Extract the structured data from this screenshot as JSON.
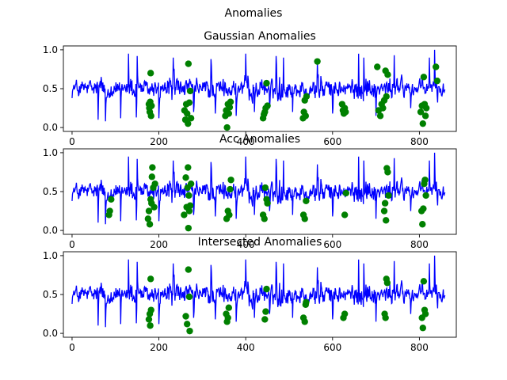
{
  "figure": {
    "suptitle": "Anomalies"
  },
  "chart_data": [
    {
      "type": "line",
      "title": "Gaussian Anomalies",
      "xlabel": "",
      "ylabel": "",
      "xlim": [
        -20,
        885
      ],
      "ylim": [
        -0.05,
        1.05
      ],
      "xticks": [
        0,
        200,
        400,
        600,
        800
      ],
      "xtick_labels": [
        "0",
        "200",
        "400",
        "600",
        "800"
      ],
      "yticks": [
        0.0,
        0.5,
        1.0
      ],
      "ytick_labels": [
        "0.0",
        "0.5",
        "1.0"
      ],
      "grid": false,
      "line_color": "#0000ff",
      "marker_color": "#008000",
      "anomaly_points": [
        [
          177,
          0.3
        ],
        [
          178,
          0.25
        ],
        [
          179,
          0.2
        ],
        [
          180,
          0.33
        ],
        [
          181,
          0.7
        ],
        [
          182,
          0.15
        ],
        [
          183,
          0.28
        ],
        [
          259,
          0.22
        ],
        [
          261,
          0.1
        ],
        [
          263,
          0.3
        ],
        [
          265,
          0.18
        ],
        [
          267,
          0.05
        ],
        [
          268,
          0.82
        ],
        [
          270,
          0.32
        ],
        [
          272,
          0.47
        ],
        [
          274,
          0.12
        ],
        [
          353,
          0.15
        ],
        [
          355,
          0.22
        ],
        [
          357,
          0.0
        ],
        [
          359,
          0.3
        ],
        [
          361,
          0.18
        ],
        [
          363,
          0.26
        ],
        [
          365,
          0.33
        ],
        [
          440,
          0.12
        ],
        [
          442,
          0.17
        ],
        [
          444,
          0.2
        ],
        [
          446,
          0.25
        ],
        [
          448,
          0.57
        ],
        [
          450,
          0.28
        ],
        [
          532,
          0.12
        ],
        [
          534,
          0.2
        ],
        [
          536,
          0.35
        ],
        [
          538,
          0.15
        ],
        [
          540,
          0.4
        ],
        [
          565,
          0.85
        ],
        [
          622,
          0.3
        ],
        [
          624,
          0.22
        ],
        [
          626,
          0.18
        ],
        [
          628,
          0.25
        ],
        [
          630,
          0.2
        ],
        [
          703,
          0.78
        ],
        [
          706,
          0.22
        ],
        [
          710,
          0.15
        ],
        [
          713,
          0.3
        ],
        [
          716,
          0.25
        ],
        [
          719,
          0.35
        ],
        [
          722,
          0.73
        ],
        [
          724,
          0.4
        ],
        [
          727,
          0.68
        ],
        [
          803,
          0.2
        ],
        [
          806,
          0.28
        ],
        [
          808,
          0.05
        ],
        [
          810,
          0.65
        ],
        [
          812,
          0.3
        ],
        [
          814,
          0.15
        ],
        [
          816,
          0.25
        ],
        [
          838,
          0.78
        ],
        [
          841,
          0.6
        ]
      ]
    },
    {
      "type": "line",
      "title": "Acc Anomalies",
      "xlabel": "",
      "ylabel": "",
      "xlim": [
        -20,
        885
      ],
      "ylim": [
        -0.05,
        1.05
      ],
      "xticks": [
        0,
        200,
        400,
        600,
        800
      ],
      "xtick_labels": [
        "0",
        "200",
        "400",
        "600",
        "800"
      ],
      "yticks": [
        0.0,
        0.5,
        1.0
      ],
      "ytick_labels": [
        "0.0",
        "0.5",
        "1.0"
      ],
      "grid": false,
      "line_color": "#0000ff",
      "marker_color": "#008000",
      "anomaly_points": [
        [
          85,
          0.2
        ],
        [
          87,
          0.25
        ],
        [
          90,
          0.4
        ],
        [
          175,
          0.15
        ],
        [
          177,
          0.25
        ],
        [
          179,
          0.08
        ],
        [
          181,
          0.4
        ],
        [
          183,
          0.35
        ],
        [
          184,
          0.69
        ],
        [
          185,
          0.81
        ],
        [
          187,
          0.55
        ],
        [
          189,
          0.3
        ],
        [
          191,
          0.6
        ],
        [
          258,
          0.2
        ],
        [
          262,
          0.68
        ],
        [
          264,
          0.3
        ],
        [
          266,
          0.55
        ],
        [
          267,
          0.81
        ],
        [
          268,
          0.03
        ],
        [
          269,
          0.45
        ],
        [
          270,
          0.25
        ],
        [
          272,
          0.32
        ],
        [
          274,
          0.6
        ],
        [
          356,
          0.15
        ],
        [
          359,
          0.25
        ],
        [
          362,
          0.2
        ],
        [
          364,
          0.53
        ],
        [
          366,
          0.65
        ],
        [
          440,
          0.2
        ],
        [
          443,
          0.15
        ],
        [
          445,
          0.55
        ],
        [
          448,
          0.4
        ],
        [
          450,
          0.35
        ],
        [
          533,
          0.2
        ],
        [
          536,
          0.15
        ],
        [
          539,
          0.38
        ],
        [
          628,
          0.2
        ],
        [
          631,
          0.48
        ],
        [
          719,
          0.25
        ],
        [
          721,
          0.35
        ],
        [
          723,
          0.13
        ],
        [
          725,
          0.8
        ],
        [
          727,
          0.75
        ],
        [
          729,
          0.45
        ],
        [
          805,
          0.25
        ],
        [
          807,
          0.08
        ],
        [
          809,
          0.28
        ],
        [
          811,
          0.6
        ],
        [
          813,
          0.65
        ],
        [
          815,
          0.45
        ]
      ]
    },
    {
      "type": "line",
      "title": "Intersected Anomalies",
      "xlabel": "",
      "ylabel": "",
      "xlim": [
        -20,
        885
      ],
      "ylim": [
        -0.05,
        1.05
      ],
      "xticks": [
        0,
        200,
        400,
        600,
        800
      ],
      "xtick_labels": [
        "0",
        "200",
        "400",
        "600",
        "800"
      ],
      "yticks": [
        0.0,
        0.5,
        1.0
      ],
      "ytick_labels": [
        "0.0",
        "0.5",
        "1.0"
      ],
      "grid": false,
      "line_color": "#0000ff",
      "marker_color": "#008000",
      "anomaly_points": [
        [
          177,
          0.18
        ],
        [
          179,
          0.25
        ],
        [
          180,
          0.1
        ],
        [
          181,
          0.7
        ],
        [
          182,
          0.3
        ],
        [
          262,
          0.22
        ],
        [
          265,
          0.12
        ],
        [
          268,
          0.82
        ],
        [
          270,
          0.47
        ],
        [
          271,
          0.03
        ],
        [
          355,
          0.25
        ],
        [
          357,
          0.15
        ],
        [
          359,
          0.2
        ],
        [
          361,
          0.33
        ],
        [
          444,
          0.18
        ],
        [
          446,
          0.28
        ],
        [
          448,
          0.57
        ],
        [
          533,
          0.2
        ],
        [
          536,
          0.15
        ],
        [
          538,
          0.37
        ],
        [
          539,
          0.4
        ],
        [
          625,
          0.2
        ],
        [
          628,
          0.25
        ],
        [
          720,
          0.25
        ],
        [
          722,
          0.2
        ],
        [
          724,
          0.7
        ],
        [
          726,
          0.65
        ],
        [
          806,
          0.2
        ],
        [
          808,
          0.07
        ],
        [
          810,
          0.67
        ],
        [
          812,
          0.3
        ],
        [
          814,
          0.25
        ]
      ]
    }
  ]
}
